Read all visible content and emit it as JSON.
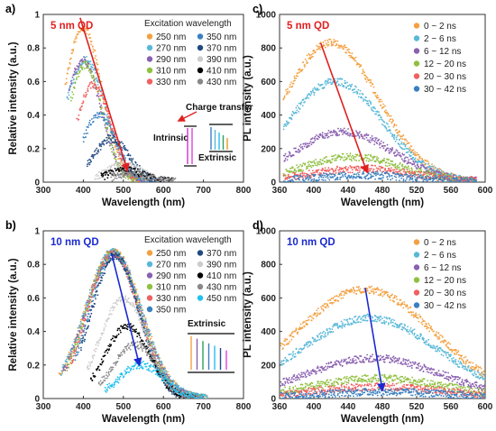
{
  "chart_data": [
    {
      "id": "a",
      "panel_label": "a)",
      "type": "scatter",
      "title": "5 nm QD",
      "title_color": "#e02020",
      "xlabel": "Wavelength (nm)",
      "ylabel": "Relative intensity (a.u.)",
      "xlim": [
        300,
        800
      ],
      "ylim": [
        0,
        1
      ],
      "xticks": [
        300,
        400,
        500,
        600,
        700,
        800
      ],
      "yticks": [
        0,
        0.2,
        0.4,
        0.6,
        0.8,
        1
      ],
      "legend_title": "Excitation wavelength",
      "legend_placement": "top-right",
      "legend_columns": 2,
      "series": [
        {
          "name": "250 nm",
          "color": "#f4a040",
          "start": 355,
          "peak_x": 400,
          "peak_y": 0.92,
          "width": 110
        },
        {
          "name": "270 nm",
          "color": "#58b8d8",
          "start": 360,
          "peak_x": 405,
          "peak_y": 0.73,
          "width": 120
        },
        {
          "name": "290 nm",
          "color": "#8a60b0",
          "start": 365,
          "peak_x": 400,
          "peak_y": 0.73,
          "width": 105
        },
        {
          "name": "310 nm",
          "color": "#90c040",
          "start": 370,
          "peak_x": 405,
          "peak_y": 0.7,
          "width": 100
        },
        {
          "name": "330 nm",
          "color": "#f06060",
          "start": 385,
          "peak_x": 425,
          "peak_y": 0.58,
          "width": 100
        },
        {
          "name": "350 nm",
          "color": "#3a80c0",
          "start": 400,
          "peak_x": 440,
          "peak_y": 0.4,
          "width": 100
        },
        {
          "name": "370 nm",
          "color": "#204a80",
          "start": 410,
          "peak_x": 470,
          "peak_y": 0.26,
          "width": 105
        },
        {
          "name": "390 nm",
          "color": "#cccccc",
          "start": 430,
          "peak_x": 500,
          "peak_y": 0.1,
          "width": 110
        },
        {
          "name": "410 nm",
          "color": "#000000",
          "start": 445,
          "peak_x": 505,
          "peak_y": 0.07,
          "width": 110
        },
        {
          "name": "430 nm",
          "color": "#888888",
          "start": 470,
          "peak_x": 520,
          "peak_y": 0.05,
          "width": 110
        }
      ],
      "arrow": {
        "from": [
          392,
          0.98
        ],
        "to": [
          510,
          0.07
        ],
        "color": "#e02020"
      },
      "annotations": [
        "Charge transfer",
        "Intrinsic",
        "Extrinsic"
      ]
    },
    {
      "id": "b",
      "panel_label": "b)",
      "type": "scatter",
      "title": "10 nm QD",
      "title_color": "#1a2ad0",
      "xlabel": "Wavelength (nm)",
      "ylabel": "Relative intensity (a.u.)",
      "xlim": [
        300,
        800
      ],
      "ylim": [
        0,
        1
      ],
      "xticks": [
        300,
        400,
        500,
        600,
        700,
        800
      ],
      "yticks": [
        0,
        0.2,
        0.4,
        0.6,
        0.8,
        1
      ],
      "legend_title": "Excitation wavelength",
      "legend_placement": "top-right",
      "legend_columns": 2,
      "series": [
        {
          "name": "250 nm",
          "color": "#f4a040",
          "start": 340,
          "peak_x": 475,
          "peak_y": 0.88,
          "width": 165
        },
        {
          "name": "270 nm",
          "color": "#58b8d8",
          "start": 345,
          "peak_x": 475,
          "peak_y": 0.88,
          "width": 165
        },
        {
          "name": "290 nm",
          "color": "#8a60b0",
          "start": 350,
          "peak_x": 475,
          "peak_y": 0.87,
          "width": 160
        },
        {
          "name": "310 nm",
          "color": "#90c040",
          "start": 360,
          "peak_x": 475,
          "peak_y": 0.87,
          "width": 155
        },
        {
          "name": "330 nm",
          "color": "#f06060",
          "start": 370,
          "peak_x": 475,
          "peak_y": 0.86,
          "width": 150
        },
        {
          "name": "350 nm",
          "color": "#3a80c0",
          "start": 380,
          "peak_x": 478,
          "peak_y": 0.86,
          "width": 145
        },
        {
          "name": "370 nm",
          "color": "#204a80",
          "start": 395,
          "peak_x": 480,
          "peak_y": 0.85,
          "width": 140
        },
        {
          "name": "390 nm",
          "color": "#cccccc",
          "start": 410,
          "peak_x": 500,
          "peak_y": 0.6,
          "width": 135
        },
        {
          "name": "410 nm",
          "color": "#000000",
          "start": 420,
          "peak_x": 510,
          "peak_y": 0.43,
          "width": 130
        },
        {
          "name": "430 nm",
          "color": "#888888",
          "start": 440,
          "peak_x": 530,
          "peak_y": 0.32,
          "width": 130
        },
        {
          "name": "450 nm",
          "color": "#20c0f0",
          "start": 455,
          "peak_x": 545,
          "peak_y": 0.2,
          "width": 130
        }
      ],
      "arrow": {
        "from": [
          470,
          0.87
        ],
        "to": [
          540,
          0.2
        ],
        "color": "#1a2ad0"
      },
      "annotations": [
        "Extrinsic"
      ]
    },
    {
      "id": "c",
      "panel_label": "c)",
      "type": "scatter",
      "title": "5 nm QD",
      "title_color": "#e02020",
      "xlabel": "Wavelength (nm)",
      "ylabel": "PL intensity (a.u.)",
      "xlim": [
        360,
        600
      ],
      "ylim": [
        0,
        1000
      ],
      "xticks": [
        360,
        400,
        440,
        480,
        520,
        560,
        600
      ],
      "yticks": [
        0,
        200,
        400,
        600,
        800,
        1000
      ],
      "legend_placement": "top-right",
      "legend_columns": 1,
      "series": [
        {
          "name": "0 ~ 2 ns",
          "color": "#f4a040",
          "start": 365,
          "end": 590,
          "peak_x": 420,
          "peak_y": 830,
          "width": 130
        },
        {
          "name": "2 ~ 6 ns",
          "color": "#58b8d8",
          "start": 365,
          "end": 590,
          "peak_x": 425,
          "peak_y": 600,
          "width": 130
        },
        {
          "name": "6 ~ 12 ns",
          "color": "#8a60b0",
          "start": 365,
          "end": 590,
          "peak_x": 435,
          "peak_y": 300,
          "width": 135
        },
        {
          "name": "12 ~ 20 ns",
          "color": "#90c040",
          "start": 365,
          "end": 590,
          "peak_x": 445,
          "peak_y": 150,
          "width": 135
        },
        {
          "name": "20 ~ 30 ns",
          "color": "#f06060",
          "start": 365,
          "end": 590,
          "peak_x": 455,
          "peak_y": 80,
          "width": 140
        },
        {
          "name": "30 ~ 42 ns",
          "color": "#3a80c0",
          "start": 365,
          "end": 590,
          "peak_x": 460,
          "peak_y": 40,
          "width": 140
        }
      ],
      "arrow": {
        "from": [
          408,
          830
        ],
        "to": [
          462,
          60
        ],
        "color": "#e02020"
      }
    },
    {
      "id": "d",
      "panel_label": "d)",
      "type": "scatter",
      "title": "10 nm QD",
      "title_color": "#1a2ad0",
      "xlabel": "Wavelength (nm)",
      "ylabel": "PL intensity (a.u.)",
      "xlim": [
        360,
        600
      ],
      "ylim": [
        0,
        1000
      ],
      "xticks": [
        360,
        400,
        440,
        480,
        520,
        560,
        600
      ],
      "yticks": [
        0,
        200,
        400,
        600,
        800,
        1000
      ],
      "legend_placement": "top-right",
      "legend_columns": 1,
      "series": [
        {
          "name": "0 ~ 2 ns",
          "color": "#f4a040",
          "start": 362,
          "end": 600,
          "peak_x": 460,
          "peak_y": 650,
          "width": 190
        },
        {
          "name": "2 ~ 6 ns",
          "color": "#58b8d8",
          "start": 362,
          "end": 600,
          "peak_x": 465,
          "peak_y": 480,
          "width": 190
        },
        {
          "name": "6 ~ 12 ns",
          "color": "#8a60b0",
          "start": 362,
          "end": 600,
          "peak_x": 470,
          "peak_y": 240,
          "width": 185
        },
        {
          "name": "12 ~ 20 ns",
          "color": "#90c040",
          "start": 362,
          "end": 600,
          "peak_x": 475,
          "peak_y": 120,
          "width": 185
        },
        {
          "name": "20 ~ 30 ns",
          "color": "#f06060",
          "start": 362,
          "end": 600,
          "peak_x": 478,
          "peak_y": 70,
          "width": 185
        },
        {
          "name": "30 ~ 42 ns",
          "color": "#3a80c0",
          "start": 362,
          "end": 600,
          "peak_x": 480,
          "peak_y": 40,
          "width": 185
        }
      ],
      "arrow": {
        "from": [
          460,
          660
        ],
        "to": [
          480,
          50
        ],
        "color": "#1a2ad0"
      }
    }
  ]
}
